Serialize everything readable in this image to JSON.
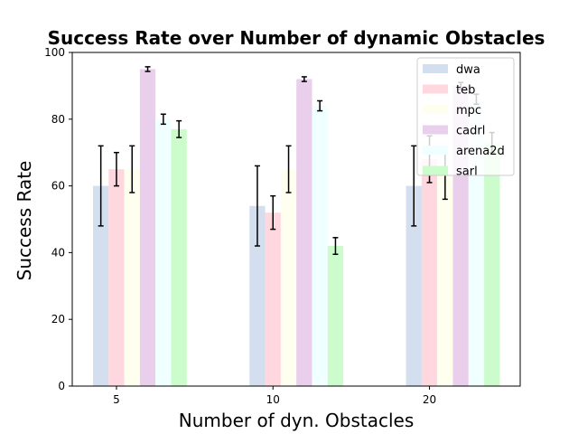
{
  "chart_data": {
    "type": "bar",
    "title": "Success Rate over Number of dynamic Obstacles",
    "xlabel": "Number of dyn. Obstacles",
    "ylabel": "Success Rate",
    "categories": [
      "5",
      "10",
      "20"
    ],
    "ylim": [
      0,
      100
    ],
    "yticks": [
      0,
      20,
      40,
      60,
      80,
      100
    ],
    "grid": false,
    "legend_position": "top-right",
    "series": [
      {
        "name": "dwa",
        "color": "#d3dfee",
        "values": [
          60,
          54,
          60
        ],
        "errors": [
          12,
          12,
          12
        ]
      },
      {
        "name": "teb",
        "color": "#ffd7df",
        "values": [
          65,
          52,
          68
        ],
        "errors": [
          5,
          5,
          7
        ]
      },
      {
        "name": "mpc",
        "color": "#fffff0",
        "values": [
          65,
          65,
          63
        ],
        "errors": [
          7,
          7,
          7
        ]
      },
      {
        "name": "cadrl",
        "color": "#eacfed",
        "values": [
          95,
          92,
          90
        ],
        "errors": [
          0.7,
          0.7,
          1
        ]
      },
      {
        "name": "arena2d",
        "color": "#f0ffff",
        "values": [
          80,
          84,
          86
        ],
        "errors": [
          1.5,
          1.5,
          1.5
        ]
      },
      {
        "name": "sarl",
        "color": "#ccfccc",
        "values": [
          77,
          42,
          73
        ],
        "errors": [
          2.5,
          2.5,
          3
        ]
      }
    ]
  }
}
